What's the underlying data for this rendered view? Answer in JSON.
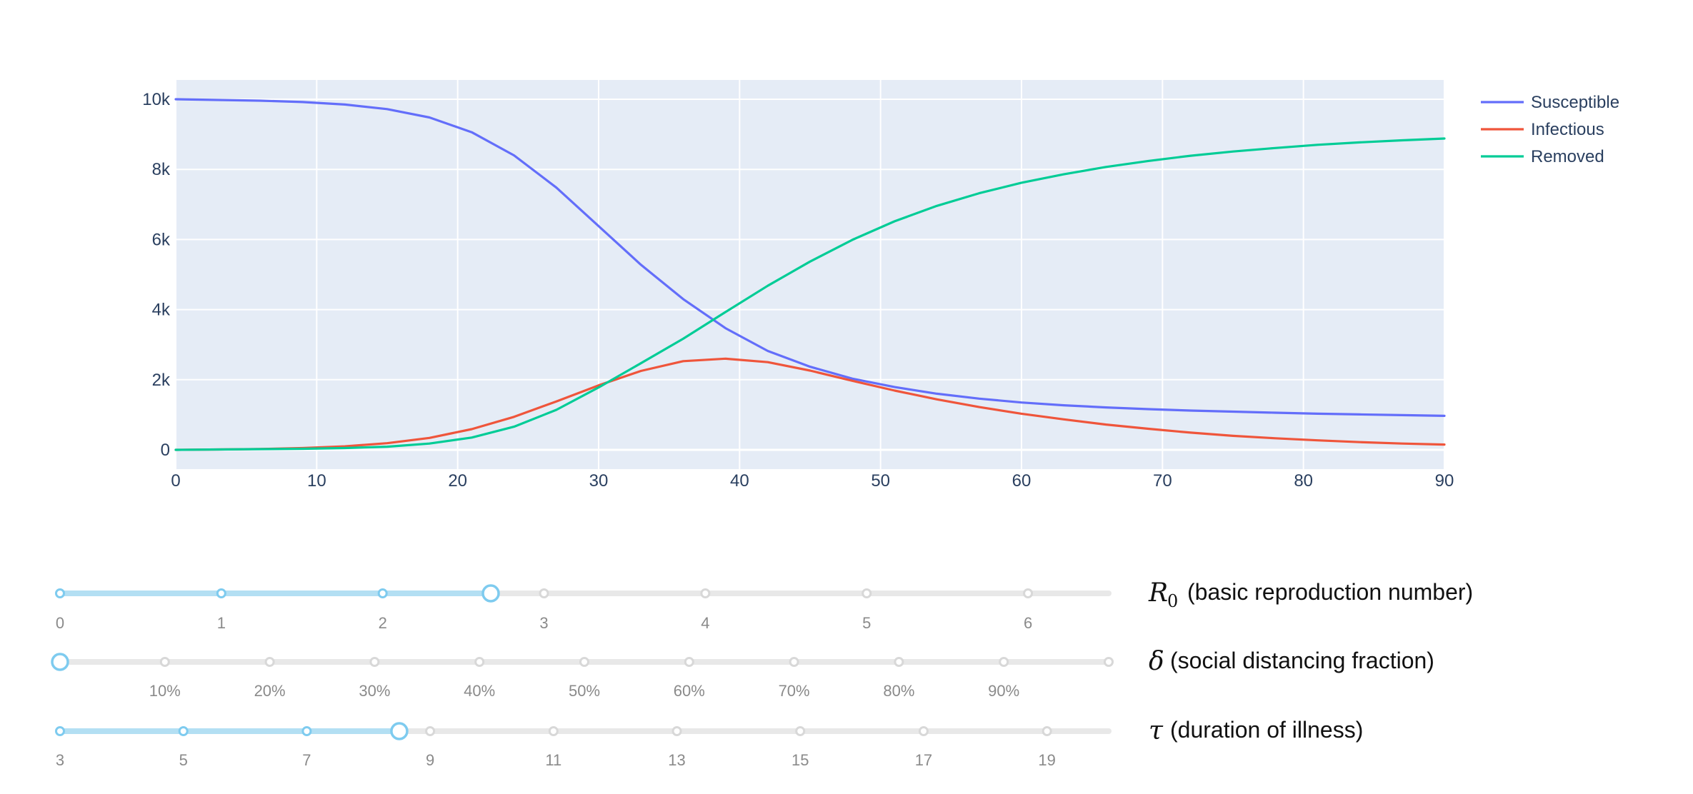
{
  "chart_data": {
    "type": "line",
    "x": [
      0,
      3,
      6,
      9,
      12,
      15,
      18,
      21,
      24,
      27,
      30,
      33,
      36,
      39,
      42,
      45,
      48,
      51,
      54,
      57,
      60,
      63,
      66,
      69,
      72,
      75,
      78,
      81,
      84,
      87,
      90
    ],
    "series": [
      {
        "name": "Susceptible",
        "color": "#636efa",
        "values": [
          10000,
          9980,
          9960,
          9920,
          9850,
          9720,
          9480,
          9060,
          8400,
          7480,
          6380,
          5280,
          4300,
          3470,
          2820,
          2370,
          2030,
          1790,
          1600,
          1460,
          1350,
          1270,
          1210,
          1160,
          1120,
          1090,
          1060,
          1030,
          1010,
          990,
          970
        ]
      },
      {
        "name": "Infectious",
        "color": "#ef553b",
        "values": [
          0,
          10,
          25,
          50,
          100,
          190,
          340,
          590,
          940,
          1380,
          1840,
          2250,
          2530,
          2600,
          2500,
          2260,
          1970,
          1690,
          1440,
          1220,
          1030,
          870,
          720,
          600,
          490,
          400,
          330,
          270,
          220,
          180,
          150
        ]
      },
      {
        "name": "Removed",
        "color": "#00cc96",
        "values": [
          0,
          10,
          20,
          30,
          50,
          90,
          180,
          350,
          660,
          1140,
          1780,
          2470,
          3170,
          3930,
          4680,
          5370,
          5990,
          6520,
          6960,
          7320,
          7620,
          7860,
          8070,
          8240,
          8390,
          8510,
          8610,
          8700,
          8770,
          8830,
          8880
        ]
      }
    ],
    "title": "",
    "xlabel": "",
    "ylabel": "",
    "xlim": [
      0,
      90
    ],
    "ylim": [
      -550,
      10550
    ],
    "x_ticks": [
      0,
      10,
      20,
      30,
      40,
      50,
      60,
      70,
      80,
      90
    ],
    "x_tick_labels": [
      "0",
      "10",
      "20",
      "30",
      "40",
      "50",
      "60",
      "70",
      "80",
      "90"
    ],
    "y_ticks": [
      0,
      2000,
      4000,
      6000,
      8000,
      10000
    ],
    "y_tick_labels": [
      "0",
      "2k",
      "4k",
      "6k",
      "8k",
      "10k"
    ],
    "grid": true,
    "legend_position": "top-right",
    "plot_background": "#e5ecf6"
  },
  "sliders": [
    {
      "id": "r0",
      "symbol": "R",
      "subscript": "0",
      "label": "(basic reproduction number)",
      "min": 0,
      "max": 6.5,
      "value": 2.67,
      "ticks": [
        0,
        1,
        2,
        3,
        4,
        5,
        6
      ],
      "tick_labels": [
        "0",
        "1",
        "2",
        "3",
        "4",
        "5",
        "6"
      ]
    },
    {
      "id": "delta",
      "symbol": "δ",
      "subscript": "",
      "label": "(social distancing fraction)",
      "min": 0,
      "max": 1,
      "value": 0,
      "ticks": [
        0,
        0.1,
        0.2,
        0.3,
        0.4,
        0.5,
        0.6,
        0.7,
        0.8,
        0.9,
        1
      ],
      "tick_labels": [
        "",
        "10%",
        "20%",
        "30%",
        "40%",
        "50%",
        "60%",
        "70%",
        "80%",
        "90%",
        ""
      ]
    },
    {
      "id": "tau",
      "symbol": "τ",
      "subscript": "",
      "label": "(duration of illness)",
      "min": 3,
      "max": 20,
      "value": 8.5,
      "ticks": [
        3,
        5,
        7,
        9,
        11,
        13,
        15,
        17,
        19
      ],
      "tick_labels": [
        "3",
        "5",
        "7",
        "9",
        "11",
        "13",
        "15",
        "17",
        "19"
      ]
    }
  ],
  "colors": {
    "grid": "#ffffff",
    "axis_text": "#2a3f5f",
    "slider_active": "#b3dff3",
    "slider_handle": "#7ecbef",
    "slider_rail": "#e8e8e8",
    "slider_dot": "#d8d8d8"
  }
}
